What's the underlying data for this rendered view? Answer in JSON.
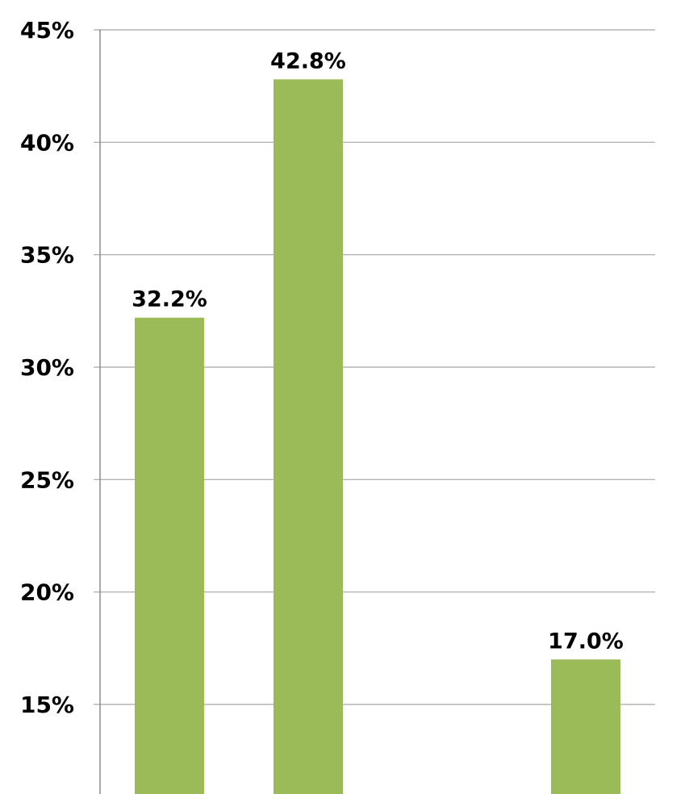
{
  "chart_data": {
    "type": "bar",
    "categories": [
      "",
      "",
      "",
      ""
    ],
    "values": [
      32.2,
      42.8,
      null,
      17.0
    ],
    "data_labels": [
      "32.2%",
      "42.8%",
      "",
      "17.0%"
    ],
    "ylim": [
      12,
      45
    ],
    "yticks": [
      15,
      20,
      25,
      30,
      35,
      40,
      45
    ],
    "ytick_labels": [
      "15%",
      "20%",
      "25%",
      "30%",
      "35%",
      "40%",
      "45%"
    ],
    "title": "",
    "xlabel": "",
    "ylabel": "",
    "grid": true,
    "legend": "none",
    "bar_color": "#9bbb59"
  }
}
